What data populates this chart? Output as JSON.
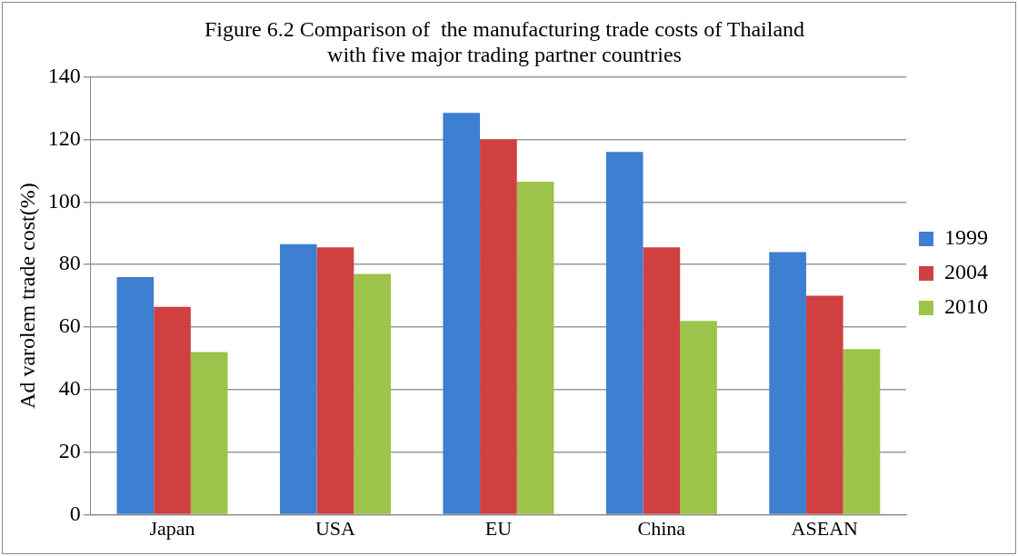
{
  "chart_data": {
    "type": "bar",
    "title": "Figure 6.2 Comparison of  the manufacturing trade costs of Thailand with five major trading partner countries",
    "ylabel": "Ad varolem trade cost(%)",
    "categories": [
      "Japan",
      "USA",
      "EU",
      "China",
      "ASEAN"
    ],
    "series": [
      {
        "name": "1999",
        "color": "#3d7fd0",
        "values": [
          76,
          86.5,
          128.5,
          116,
          84
        ]
      },
      {
        "name": "2004",
        "color": "#d04040",
        "values": [
          66.5,
          85.5,
          120,
          85.5,
          70
        ]
      },
      {
        "name": "2010",
        "color": "#9cc44a",
        "values": [
          52,
          77,
          106.5,
          62,
          53
        ]
      }
    ],
    "ylim": [
      0,
      140
    ],
    "yticks": [
      0,
      20,
      40,
      60,
      80,
      100,
      120,
      140
    ],
    "grid": "y",
    "legend": "right"
  }
}
